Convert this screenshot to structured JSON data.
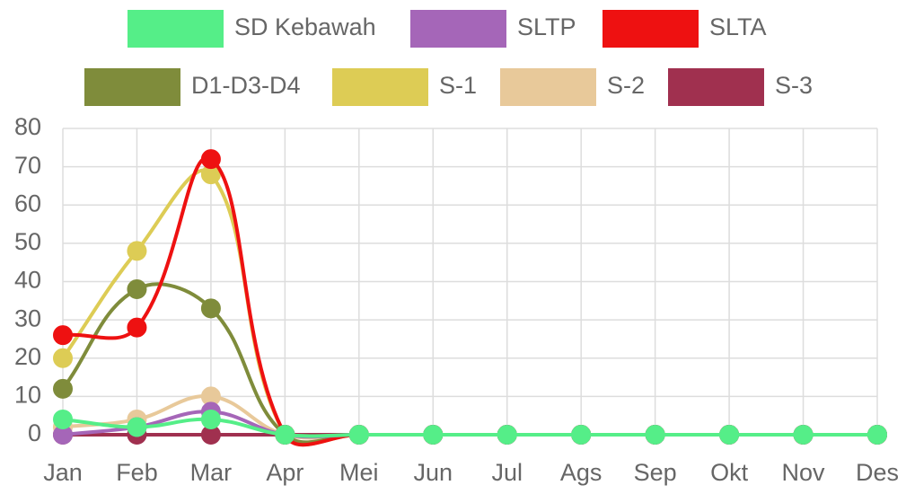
{
  "chart_data": {
    "type": "line",
    "categories": [
      "Jan",
      "Feb",
      "Mar",
      "Apr",
      "Mei",
      "Jun",
      "Jul",
      "Ags",
      "Sep",
      "Okt",
      "Nov",
      "Des"
    ],
    "series": [
      {
        "name": "SD Kebawah",
        "color": "#55ee88",
        "values": [
          4,
          2,
          4,
          0,
          0,
          0,
          0,
          0,
          0,
          0,
          0,
          0
        ]
      },
      {
        "name": "SLTP",
        "color": "#a566b8",
        "values": [
          0,
          2,
          6,
          0,
          0,
          0,
          0,
          0,
          0,
          0,
          0,
          0
        ]
      },
      {
        "name": "SLTA",
        "color": "#ee1111",
        "values": [
          26,
          28,
          72,
          0,
          0,
          0,
          0,
          0,
          0,
          0,
          0,
          0
        ]
      },
      {
        "name": "D1-D3-D4",
        "color": "#7f8c3b",
        "values": [
          12,
          38,
          33,
          0,
          0,
          0,
          0,
          0,
          0,
          0,
          0,
          0
        ]
      },
      {
        "name": "S-1",
        "color": "#ddcc55",
        "values": [
          20,
          48,
          68,
          0,
          0,
          0,
          0,
          0,
          0,
          0,
          0,
          0
        ]
      },
      {
        "name": "S-2",
        "color": "#e8c99a",
        "values": [
          2,
          4,
          10,
          0,
          0,
          0,
          0,
          0,
          0,
          0,
          0,
          0
        ]
      },
      {
        "name": "S-3",
        "color": "#a0304f",
        "values": [
          0,
          0,
          0,
          0,
          0,
          0,
          0,
          0,
          0,
          0,
          0,
          0
        ]
      }
    ],
    "ylim": [
      0,
      80
    ],
    "yticks": [
      0,
      10,
      20,
      30,
      40,
      50,
      60,
      70,
      80
    ],
    "grid": true,
    "legend": "top"
  }
}
